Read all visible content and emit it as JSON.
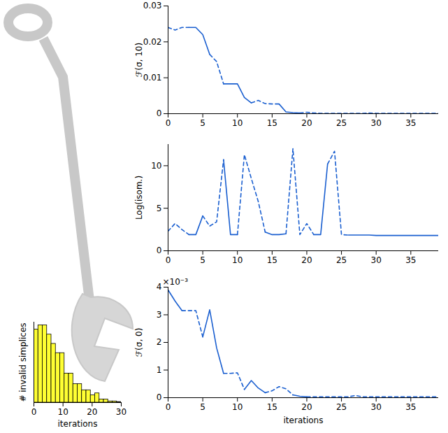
{
  "chart_data": [
    {
      "type": "line",
      "ylabel": "ℱ(σ, 10)",
      "x": [
        0,
        1,
        2,
        3,
        4,
        5,
        6,
        7,
        8,
        9,
        10,
        11,
        12,
        13,
        14,
        15,
        16,
        17,
        18,
        19,
        20,
        21,
        22,
        23,
        24,
        25,
        26,
        27,
        28,
        29,
        30,
        31,
        32,
        33,
        34,
        35,
        36,
        37,
        38,
        39
      ],
      "series": [
        {
          "line_style": "solid",
          "color": "#1a5fd0",
          "values": [
            null,
            null,
            null,
            0.024,
            0.024,
            0.022,
            0.0165,
            null,
            0.0083,
            0.0083,
            0.0083,
            0.0045,
            0.003,
            null,
            null,
            null,
            0.0027,
            0.0005,
            0.0003,
            0.0002,
            null,
            null,
            null,
            null,
            null,
            null,
            null,
            null,
            null,
            null,
            null,
            null,
            null,
            null,
            null,
            null,
            null,
            null,
            null,
            null
          ]
        },
        {
          "line_style": "dashed",
          "color": "#1a5fd0",
          "values": [
            0.024,
            0.0233,
            0.024,
            0.024,
            null,
            null,
            0.0165,
            0.0145,
            0.0083,
            null,
            null,
            null,
            0.003,
            0.0037,
            0.0028,
            0.0027,
            0.0027,
            null,
            null,
            0.0002,
            0.0004,
            0.0002,
            0.0001,
            0.0001,
            0.0001,
            0.0001,
            0.0001,
            0.0001,
            0.0001,
            0.0002,
            0.0001,
            0.0001,
            0.0001,
            0.0001,
            0.0001,
            0.0001,
            0.0001,
            0.0001,
            0.0001,
            0.0001
          ]
        }
      ],
      "xlim": [
        0,
        39
      ],
      "xticks": [
        0,
        5,
        10,
        15,
        20,
        25,
        30,
        35
      ],
      "ylim": [
        0,
        0.03
      ],
      "yticks": [
        0,
        0.01,
        0.02,
        0.03
      ]
    },
    {
      "type": "line",
      "ylabel": "Log(isom.)",
      "x": [
        0,
        1,
        2,
        3,
        4,
        5,
        6,
        7,
        8,
        9,
        10,
        11,
        12,
        13,
        14,
        15,
        16,
        17,
        18,
        19,
        20,
        21,
        22,
        23,
        24,
        25,
        26,
        27,
        28,
        29,
        30,
        31,
        32,
        33,
        34,
        35,
        36,
        37,
        38,
        39
      ],
      "series": [
        {
          "line_style": "solid",
          "color": "#1a5fd0",
          "values": [
            null,
            null,
            null,
            1.9,
            1.9,
            4.1,
            null,
            null,
            10.7,
            1.9,
            1.9,
            null,
            null,
            null,
            2.2,
            1.9,
            1.9,
            2.0,
            null,
            null,
            null,
            1.9,
            1.9,
            10.2,
            null,
            null,
            1.85,
            1.85,
            1.85,
            1.85,
            1.8,
            1.8,
            1.8,
            1.8,
            1.8,
            1.8,
            1.8,
            1.8,
            1.8,
            1.8
          ]
        },
        {
          "line_style": "dashed",
          "color": "#1a5fd0",
          "values": [
            2.3,
            3.2,
            2.5,
            1.9,
            null,
            4.1,
            2.9,
            3.4,
            10.7,
            null,
            1.9,
            11.3,
            8.5,
            5.8,
            2.2,
            null,
            null,
            2.0,
            12.0,
            1.9,
            3.2,
            1.9,
            null,
            10.2,
            11.7,
            1.9,
            1.85,
            null,
            null,
            null,
            null,
            null,
            null,
            null,
            null,
            null,
            null,
            null,
            null,
            null
          ]
        }
      ],
      "xlim": [
        0,
        39
      ],
      "xticks": [
        0,
        5,
        10,
        15,
        20,
        25,
        30,
        35
      ],
      "ylim": [
        0,
        12.5
      ],
      "yticks": [
        0,
        5,
        10
      ]
    },
    {
      "type": "line",
      "ylabel": "ℱ(σ, 0)",
      "xlabel": "iterations",
      "annotations": [
        "×10⁻³"
      ],
      "x": [
        0,
        1,
        2,
        3,
        4,
        5,
        6,
        7,
        8,
        9,
        10,
        11,
        12,
        13,
        14,
        15,
        16,
        17,
        18,
        19,
        20,
        21,
        22,
        23,
        24,
        25,
        26,
        27,
        28,
        29,
        30,
        31,
        32,
        33,
        34,
        35,
        36,
        37,
        38,
        39
      ],
      "series": [
        {
          "line_style": "solid",
          "color": "#1a5fd0",
          "values": [
            0.0039,
            0.0035,
            0.00315,
            null,
            null,
            0.0022,
            0.00318,
            0.0018,
            0.00088,
            null,
            null,
            0.0003,
            0.00062,
            0.00035,
            0.00018,
            null,
            null,
            null,
            0.0001,
            5e-05,
            3e-05,
            null,
            null,
            null,
            null,
            null,
            null,
            null,
            null,
            null,
            null,
            null,
            null,
            null,
            null,
            null,
            null,
            null,
            null,
            null
          ]
        },
        {
          "line_style": "dashed",
          "color": "#1a5fd0",
          "values": [
            null,
            null,
            0.00315,
            0.00315,
            0.00315,
            0.0022,
            null,
            null,
            0.00088,
            0.00088,
            0.0009,
            0.0003,
            null,
            null,
            0.00018,
            0.00025,
            0.0004,
            0.00032,
            0.0001,
            null,
            3e-05,
            3e-05,
            3e-05,
            3e-05,
            3e-05,
            3e-05,
            3e-05,
            8e-05,
            3e-05,
            3e-05,
            3e-05,
            3e-05,
            3e-05,
            3e-05,
            3e-05,
            3e-05,
            3e-05,
            3e-05,
            3e-05,
            3e-05
          ]
        }
      ],
      "xlim": [
        0,
        39
      ],
      "xticks": [
        0,
        5,
        10,
        15,
        20,
        25,
        30,
        35
      ],
      "ylim": [
        0,
        0.004
      ],
      "yticks": [
        0,
        {
          "value": 0.001,
          "label": "1"
        },
        {
          "value": 0.002,
          "label": "2"
        },
        {
          "value": 0.003,
          "label": "3"
        },
        {
          "value": 0.004,
          "label": "4"
        }
      ]
    },
    {
      "type": "histogram",
      "ylabel": "# invalid simplices",
      "xlabel": "iterations",
      "color": "#ffff33",
      "bins": [
        0,
        1.5,
        3,
        4.5,
        6,
        7.5,
        9,
        10.5,
        12,
        13.5,
        15,
        16.5,
        18,
        19.5,
        21,
        22.5,
        24,
        25.5,
        27,
        28.5,
        30
      ],
      "values": [
        118,
        125,
        125,
        110,
        95,
        80,
        80,
        47,
        47,
        30,
        30,
        20,
        20,
        12,
        15,
        5,
        5,
        2,
        2,
        1
      ],
      "xlim": [
        0,
        30
      ],
      "xticks": [
        0,
        10,
        20,
        30
      ],
      "ylim": [
        0,
        130
      ],
      "yticks": [],
      "tick_labels": "x"
    }
  ]
}
